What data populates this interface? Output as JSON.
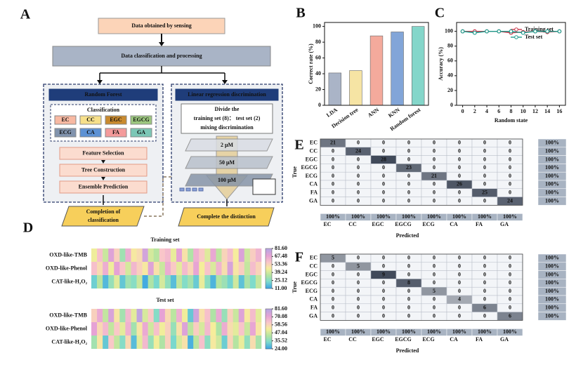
{
  "panel_labels": [
    "A",
    "B",
    "C",
    "D",
    "E",
    "F"
  ],
  "diagram": {
    "top": "Data obtained by sensing",
    "main": "Data classification and processing",
    "rf": {
      "title": "Random Forest",
      "classification": "Classification",
      "classes": [
        "EC",
        "CC",
        "EGC",
        "EGCG",
        "ECG",
        "CA",
        "FA",
        "GA"
      ],
      "class_colors": [
        "#f8b9a2",
        "#f7e08a",
        "#c98a2e",
        "#9cc77f",
        "#8193ad",
        "#5d92d4",
        "#f49b9b",
        "#7cc7b6"
      ],
      "steps": [
        "Feature Selection",
        "Tree Construction",
        "Ensemble Prediction"
      ],
      "result": [
        "Completion of",
        "classification"
      ]
    },
    "lrd": {
      "title": "Linear regression discrimination",
      "divide": [
        "Divide the",
        "training set (8)： test set (2)",
        "mixing discrimination"
      ],
      "concentrations": [
        "2 μM",
        "50 μM",
        "100 μM"
      ],
      "result": "Complete the distinction"
    }
  },
  "chart_data": [
    {
      "type": "bar",
      "ylabel": "Correct rate (%)",
      "categories": [
        "LDA",
        "Decision tree",
        "ANN",
        "KNN",
        "Random forest"
      ],
      "values": [
        41,
        44,
        88,
        93,
        100
      ],
      "colors": [
        "#aab4c7",
        "#f6e4a4",
        "#f4aa9c",
        "#82a5d8",
        "#84d6ca"
      ],
      "ylim": [
        0,
        105
      ],
      "yticks": [
        0,
        20,
        40,
        60,
        80,
        100
      ]
    },
    {
      "type": "line",
      "xlabel": "Random state",
      "ylabel": "Accuracy (%)",
      "x": [
        0,
        2,
        4,
        6,
        8,
        10,
        12,
        14,
        16
      ],
      "series": [
        {
          "name": "Training set",
          "color": "#c8364a",
          "values": [
            100,
            100,
            100,
            100,
            98,
            99,
            100,
            99,
            100
          ]
        },
        {
          "name": "Test set",
          "color": "#1f9e8f",
          "values": [
            100,
            98,
            100,
            100,
            100,
            98,
            100,
            100,
            100
          ]
        }
      ],
      "xlim": [
        -1,
        17
      ],
      "xticks": [
        0,
        2,
        4,
        6,
        8,
        10,
        12,
        14,
        16
      ],
      "ylim": [
        0,
        112
      ],
      "yticks": [
        0,
        20,
        40,
        60,
        80,
        100
      ],
      "legend": "upper right"
    },
    {
      "type": "heatmap",
      "title": "Training set",
      "rows": [
        "OXD-like-TMB",
        "OXD-like-Phenol",
        "CAT-like-H₂O₂"
      ],
      "values": [
        [
          45,
          60,
          38,
          72,
          55,
          30,
          66,
          48,
          52,
          75,
          40,
          35,
          58,
          62,
          44,
          70,
          50,
          33,
          65,
          57,
          42,
          68,
          36,
          54,
          61,
          47,
          73,
          39,
          56,
          64
        ],
        [
          60,
          52,
          66,
          45,
          70,
          58,
          40,
          63,
          55,
          48,
          72,
          50,
          38,
          67,
          57,
          43,
          62,
          53,
          69,
          46,
          59,
          41,
          64,
          51,
          74,
          49,
          56,
          37,
          61,
          54
        ],
        [
          20,
          35,
          15,
          28,
          42,
          18,
          30,
          25,
          38,
          12,
          33,
          22,
          40,
          27,
          16,
          36,
          24,
          31,
          19,
          44,
          26,
          14,
          34,
          29,
          21,
          39,
          17,
          32,
          23,
          37
        ]
      ],
      "clim": [
        11,
        81.6
      ],
      "cticks": [
        {
          "value": 81.6,
          "label": "81.60"
        },
        {
          "value": 67.48,
          "label": "67.48"
        },
        {
          "value": 53.36,
          "label": "53.36"
        },
        {
          "value": 39.24,
          "label": "39.24"
        },
        {
          "value": 25.12,
          "label": "25.12"
        },
        {
          "value": 11,
          "label": "11.00"
        }
      ],
      "colorscale": [
        "#3ea6e2",
        "#7edbcc",
        "#b6e4a0",
        "#f6ee9a",
        "#f9c6c9",
        "#e6a2d5",
        "#b9a6e2"
      ]
    },
    {
      "type": "heatmap",
      "title": "Test set",
      "rows": [
        "OXD-like-TMB",
        "OXD-like-Phenol",
        "CAT-like-H₂O₂"
      ],
      "values": [
        [
          60,
          70,
          45,
          75,
          55,
          40,
          66,
          50,
          80,
          48,
          62,
          35,
          72,
          58,
          44,
          68,
          52,
          30,
          77,
          56,
          64,
          42,
          70,
          38,
          60,
          46,
          74,
          54,
          65,
          50
        ],
        [
          72,
          58,
          66,
          45,
          62,
          50,
          68,
          40,
          55,
          70,
          47,
          64,
          52,
          60,
          38,
          56,
          74,
          44,
          61,
          48,
          66,
          53,
          42,
          69,
          57,
          50,
          63,
          46,
          71,
          55
        ],
        [
          40,
          55,
          30,
          62,
          45,
          35,
          58,
          28,
          50,
          66,
          38,
          52,
          42,
          60,
          33,
          48,
          56,
          26,
          44,
          64,
          36,
          54,
          47,
          31,
          59,
          43,
          51,
          37,
          57,
          41
        ]
      ],
      "clim": [
        24,
        81.6
      ],
      "cticks": [
        {
          "value": 81.6,
          "label": "81.60"
        },
        {
          "value": 70.08,
          "label": "70.08"
        },
        {
          "value": 58.56,
          "label": "58.56"
        },
        {
          "value": 47.04,
          "label": "47.04"
        },
        {
          "value": 35.52,
          "label": "35.52"
        },
        {
          "value": 24,
          "label": "24.00"
        }
      ],
      "colorscale": [
        "#3ea6e2",
        "#7edbcc",
        "#b6e4a0",
        "#f6ee9a",
        "#f9c6c9",
        "#e6a2d5",
        "#b9a6e2"
      ]
    },
    {
      "type": "confusion",
      "xlabel": "Predicted",
      "ylabel": "True",
      "labels": [
        "EC",
        "CC",
        "EGC",
        "EGCG",
        "ECG",
        "CA",
        "FA",
        "GA"
      ],
      "matrix": [
        [
          21,
          0,
          0,
          0,
          0,
          0,
          0,
          0
        ],
        [
          0,
          24,
          0,
          0,
          0,
          0,
          0,
          0
        ],
        [
          0,
          0,
          28,
          0,
          0,
          0,
          0,
          0
        ],
        [
          0,
          0,
          0,
          23,
          0,
          0,
          0,
          0
        ],
        [
          0,
          0,
          0,
          0,
          21,
          0,
          0,
          0
        ],
        [
          0,
          0,
          0,
          0,
          0,
          26,
          0,
          0
        ],
        [
          0,
          0,
          0,
          0,
          0,
          0,
          25,
          0
        ],
        [
          0,
          0,
          0,
          0,
          0,
          0,
          0,
          24
        ]
      ],
      "row_rates": {
        "values": [
          100,
          100,
          100,
          100,
          100,
          100,
          100,
          100
        ],
        "value_labels": [
          "100%",
          "100%",
          "100%",
          "100%",
          "100%",
          "100%",
          "100%",
          "100%"
        ]
      },
      "col_rates": {
        "values": [
          100,
          100,
          100,
          100,
          100,
          100,
          100,
          100
        ],
        "value_labels": [
          "100%",
          "100%",
          "100%",
          "100%",
          "100%",
          "100%",
          "100%",
          "100%"
        ]
      },
      "colors": [
        "#f3f5f8",
        "#414a5a"
      ]
    },
    {
      "type": "confusion",
      "xlabel": "Predicted",
      "ylabel": "True",
      "labels": [
        "EC",
        "CC",
        "EGC",
        "EGCG",
        "ECG",
        "CA",
        "FA",
        "GA"
      ],
      "matrix": [
        [
          5,
          0,
          0,
          0,
          0,
          0,
          0,
          0
        ],
        [
          0,
          5,
          0,
          0,
          0,
          0,
          0,
          0
        ],
        [
          0,
          0,
          9,
          0,
          0,
          0,
          0,
          0
        ],
        [
          0,
          0,
          0,
          8,
          0,
          0,
          0,
          0
        ],
        [
          0,
          0,
          0,
          0,
          5,
          0,
          0,
          0
        ],
        [
          0,
          0,
          0,
          0,
          0,
          4,
          0,
          0
        ],
        [
          0,
          0,
          0,
          0,
          0,
          0,
          6,
          0
        ],
        [
          0,
          0,
          0,
          0,
          0,
          0,
          0,
          6
        ]
      ],
      "row_rates": {
        "values": [
          100,
          100,
          100,
          100,
          100,
          100,
          100,
          100
        ],
        "value_labels": [
          "100%",
          "100%",
          "100%",
          "100%",
          "100%",
          "100%",
          "100%",
          "100%"
        ]
      },
      "col_rates": {
        "values": [
          100,
          100,
          100,
          100,
          100,
          100,
          100,
          100
        ],
        "value_labels": [
          "100%",
          "100%",
          "100%",
          "100%",
          "100%",
          "100%",
          "100%",
          "100%"
        ]
      },
      "colors": [
        "#f3f5f8",
        "#414a5a"
      ]
    }
  ]
}
